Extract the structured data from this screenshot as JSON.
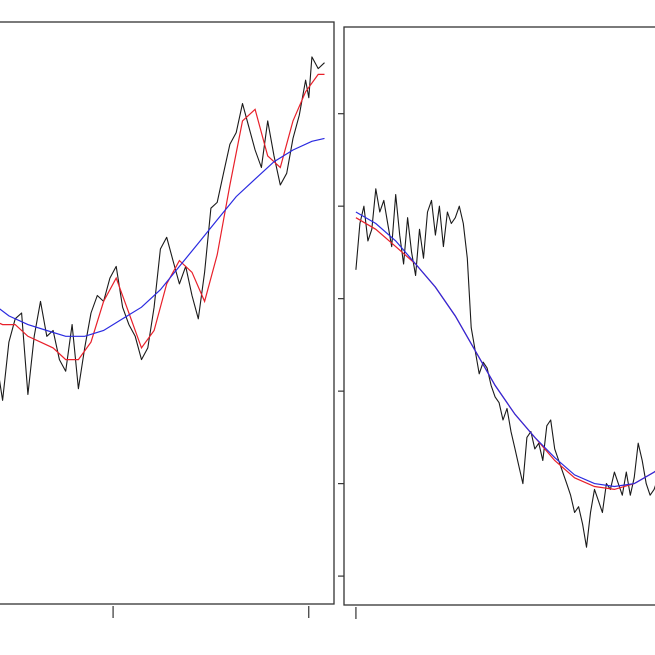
{
  "colors": {
    "raw": "#1a1a1a",
    "local_fit": "#e8202a",
    "trend_fit": "#2a2ae0"
  },
  "chart_data": [
    {
      "type": "line",
      "title": "",
      "xlabel": "",
      "ylabel": "",
      "grid": false,
      "legend": "none",
      "xlim": [
        -0.6,
        10.3
      ],
      "ylim": [
        0,
        10
      ],
      "x_ticks": [
        3.3,
        9.5
      ],
      "y_ticks": [],
      "series": [
        {
          "role": "raw",
          "x": [
            -0.6,
            -0.4,
            -0.2,
            0.0,
            0.2,
            0.4,
            0.6,
            0.8,
            1.0,
            1.2,
            1.4,
            1.6,
            1.8,
            2.0,
            2.2,
            2.4,
            2.6,
            2.8,
            3.0,
            3.2,
            3.4,
            3.6,
            3.8,
            4.0,
            4.2,
            4.4,
            4.6,
            4.8,
            5.0,
            5.2,
            5.4,
            5.6,
            5.8,
            6.0,
            6.2,
            6.4,
            6.6,
            6.8,
            7.0,
            7.2,
            7.4,
            7.6,
            7.8,
            8.0,
            8.2,
            8.4,
            8.6,
            8.8,
            9.0,
            9.2,
            9.4,
            9.5,
            9.6,
            9.8,
            10.0
          ],
          "y": [
            5.2,
            4.2,
            3.5,
            4.5,
            4.9,
            5.0,
            3.6,
            4.6,
            5.2,
            4.6,
            4.7,
            4.2,
            4.0,
            4.8,
            3.7,
            4.4,
            5.0,
            5.3,
            5.2,
            5.6,
            5.8,
            5.1,
            4.8,
            4.6,
            4.2,
            4.4,
            5.1,
            6.1,
            6.3,
            5.9,
            5.5,
            5.8,
            5.3,
            4.9,
            5.7,
            6.8,
            6.9,
            7.4,
            7.9,
            8.1,
            8.6,
            8.2,
            7.8,
            7.5,
            8.3,
            7.7,
            7.2,
            7.4,
            8.0,
            8.4,
            9.0,
            8.7,
            9.4,
            9.2,
            9.3
          ]
        },
        {
          "role": "local_fit",
          "x": [
            -0.6,
            -0.2,
            0.2,
            0.6,
            1.0,
            1.4,
            1.8,
            2.2,
            2.6,
            3.0,
            3.4,
            3.8,
            4.2,
            4.6,
            5.0,
            5.4,
            5.8,
            6.2,
            6.6,
            7.0,
            7.4,
            7.8,
            8.2,
            8.6,
            9.0,
            9.4,
            9.8,
            10.0
          ],
          "y": [
            4.9,
            4.8,
            4.8,
            4.6,
            4.5,
            4.4,
            4.2,
            4.2,
            4.5,
            5.2,
            5.6,
            5.0,
            4.4,
            4.7,
            5.5,
            5.9,
            5.7,
            5.2,
            6.0,
            7.2,
            8.3,
            8.5,
            7.7,
            7.5,
            8.3,
            8.8,
            9.1,
            9.1
          ]
        },
        {
          "role": "trend_fit",
          "x": [
            -0.6,
            0.0,
            0.6,
            1.2,
            1.8,
            2.4,
            3.0,
            3.6,
            4.2,
            4.8,
            5.4,
            6.0,
            6.6,
            7.2,
            7.8,
            8.4,
            9.0,
            9.6,
            10.0
          ],
          "y": [
            5.2,
            4.95,
            4.8,
            4.7,
            4.6,
            4.6,
            4.7,
            4.9,
            5.1,
            5.4,
            5.8,
            6.2,
            6.6,
            7.0,
            7.3,
            7.6,
            7.8,
            7.95,
            8.0
          ]
        }
      ]
    },
    {
      "type": "line",
      "title": "",
      "xlabel": "",
      "ylabel": "",
      "grid": false,
      "legend": "none",
      "xlim": [
        -0.3,
        8.0
      ],
      "ylim": [
        0,
        10
      ],
      "x_ticks": [
        0.0
      ],
      "y_ticks": [
        0.5,
        2.1,
        3.7,
        5.3,
        6.9,
        8.5
      ],
      "series": [
        {
          "role": "raw",
          "x": [
            0.0,
            0.1,
            0.2,
            0.3,
            0.4,
            0.5,
            0.6,
            0.7,
            0.8,
            0.9,
            1.0,
            1.1,
            1.2,
            1.3,
            1.4,
            1.5,
            1.6,
            1.7,
            1.8,
            1.9,
            2.0,
            2.1,
            2.2,
            2.3,
            2.4,
            2.5,
            2.6,
            2.7,
            2.8,
            2.9,
            3.0,
            3.1,
            3.2,
            3.3,
            3.4,
            3.5,
            3.6,
            3.7,
            3.8,
            3.9,
            4.0,
            4.1,
            4.2,
            4.3,
            4.4,
            4.5,
            4.6,
            4.7,
            4.8,
            4.9,
            5.0,
            5.1,
            5.2,
            5.3,
            5.4,
            5.5,
            5.6,
            5.7,
            5.8,
            5.9,
            6.0,
            6.1,
            6.2,
            6.3,
            6.4,
            6.5,
            6.6,
            6.7,
            6.8,
            6.9,
            7.0,
            7.1,
            7.2,
            7.3,
            7.4,
            7.5,
            7.6,
            7.7
          ],
          "y": [
            5.8,
            6.6,
            6.9,
            6.3,
            6.5,
            7.2,
            6.8,
            7.0,
            6.6,
            6.2,
            7.1,
            6.4,
            5.9,
            6.7,
            6.1,
            5.7,
            6.5,
            6.0,
            6.8,
            7.0,
            6.4,
            6.9,
            6.2,
            6.8,
            6.6,
            6.7,
            6.9,
            6.6,
            6.0,
            4.8,
            4.4,
            4.0,
            4.2,
            4.1,
            3.8,
            3.6,
            3.5,
            3.2,
            3.4,
            3.0,
            2.7,
            2.4,
            2.1,
            2.9,
            3.0,
            2.7,
            2.8,
            2.5,
            3.1,
            3.2,
            2.7,
            2.5,
            2.3,
            2.1,
            1.9,
            1.6,
            1.7,
            1.4,
            1.0,
            1.6,
            2.0,
            1.8,
            1.6,
            2.1,
            2.0,
            2.3,
            2.1,
            1.9,
            2.3,
            1.9,
            2.2,
            2.8,
            2.5,
            2.1,
            1.9,
            2.0,
            2.2,
            2.4
          ]
        },
        {
          "role": "local_fit",
          "x": [
            0.0,
            0.5,
            1.0,
            1.5,
            2.0,
            2.5,
            3.0,
            3.5,
            4.0,
            4.5,
            5.0,
            5.5,
            6.0,
            6.5,
            7.0,
            7.5,
            7.7
          ],
          "y": [
            6.7,
            6.5,
            6.2,
            5.9,
            5.5,
            5.0,
            4.4,
            3.8,
            3.3,
            2.9,
            2.5,
            2.2,
            2.05,
            2.0,
            2.1,
            2.3,
            2.4
          ]
        },
        {
          "role": "trend_fit",
          "x": [
            0.0,
            0.5,
            1.0,
            1.5,
            2.0,
            2.5,
            3.0,
            3.5,
            4.0,
            4.5,
            5.0,
            5.5,
            6.0,
            6.5,
            7.0,
            7.5,
            7.7
          ],
          "y": [
            6.8,
            6.6,
            6.3,
            5.9,
            5.5,
            5.0,
            4.4,
            3.8,
            3.3,
            2.9,
            2.55,
            2.25,
            2.1,
            2.05,
            2.1,
            2.3,
            2.4
          ]
        }
      ]
    }
  ]
}
